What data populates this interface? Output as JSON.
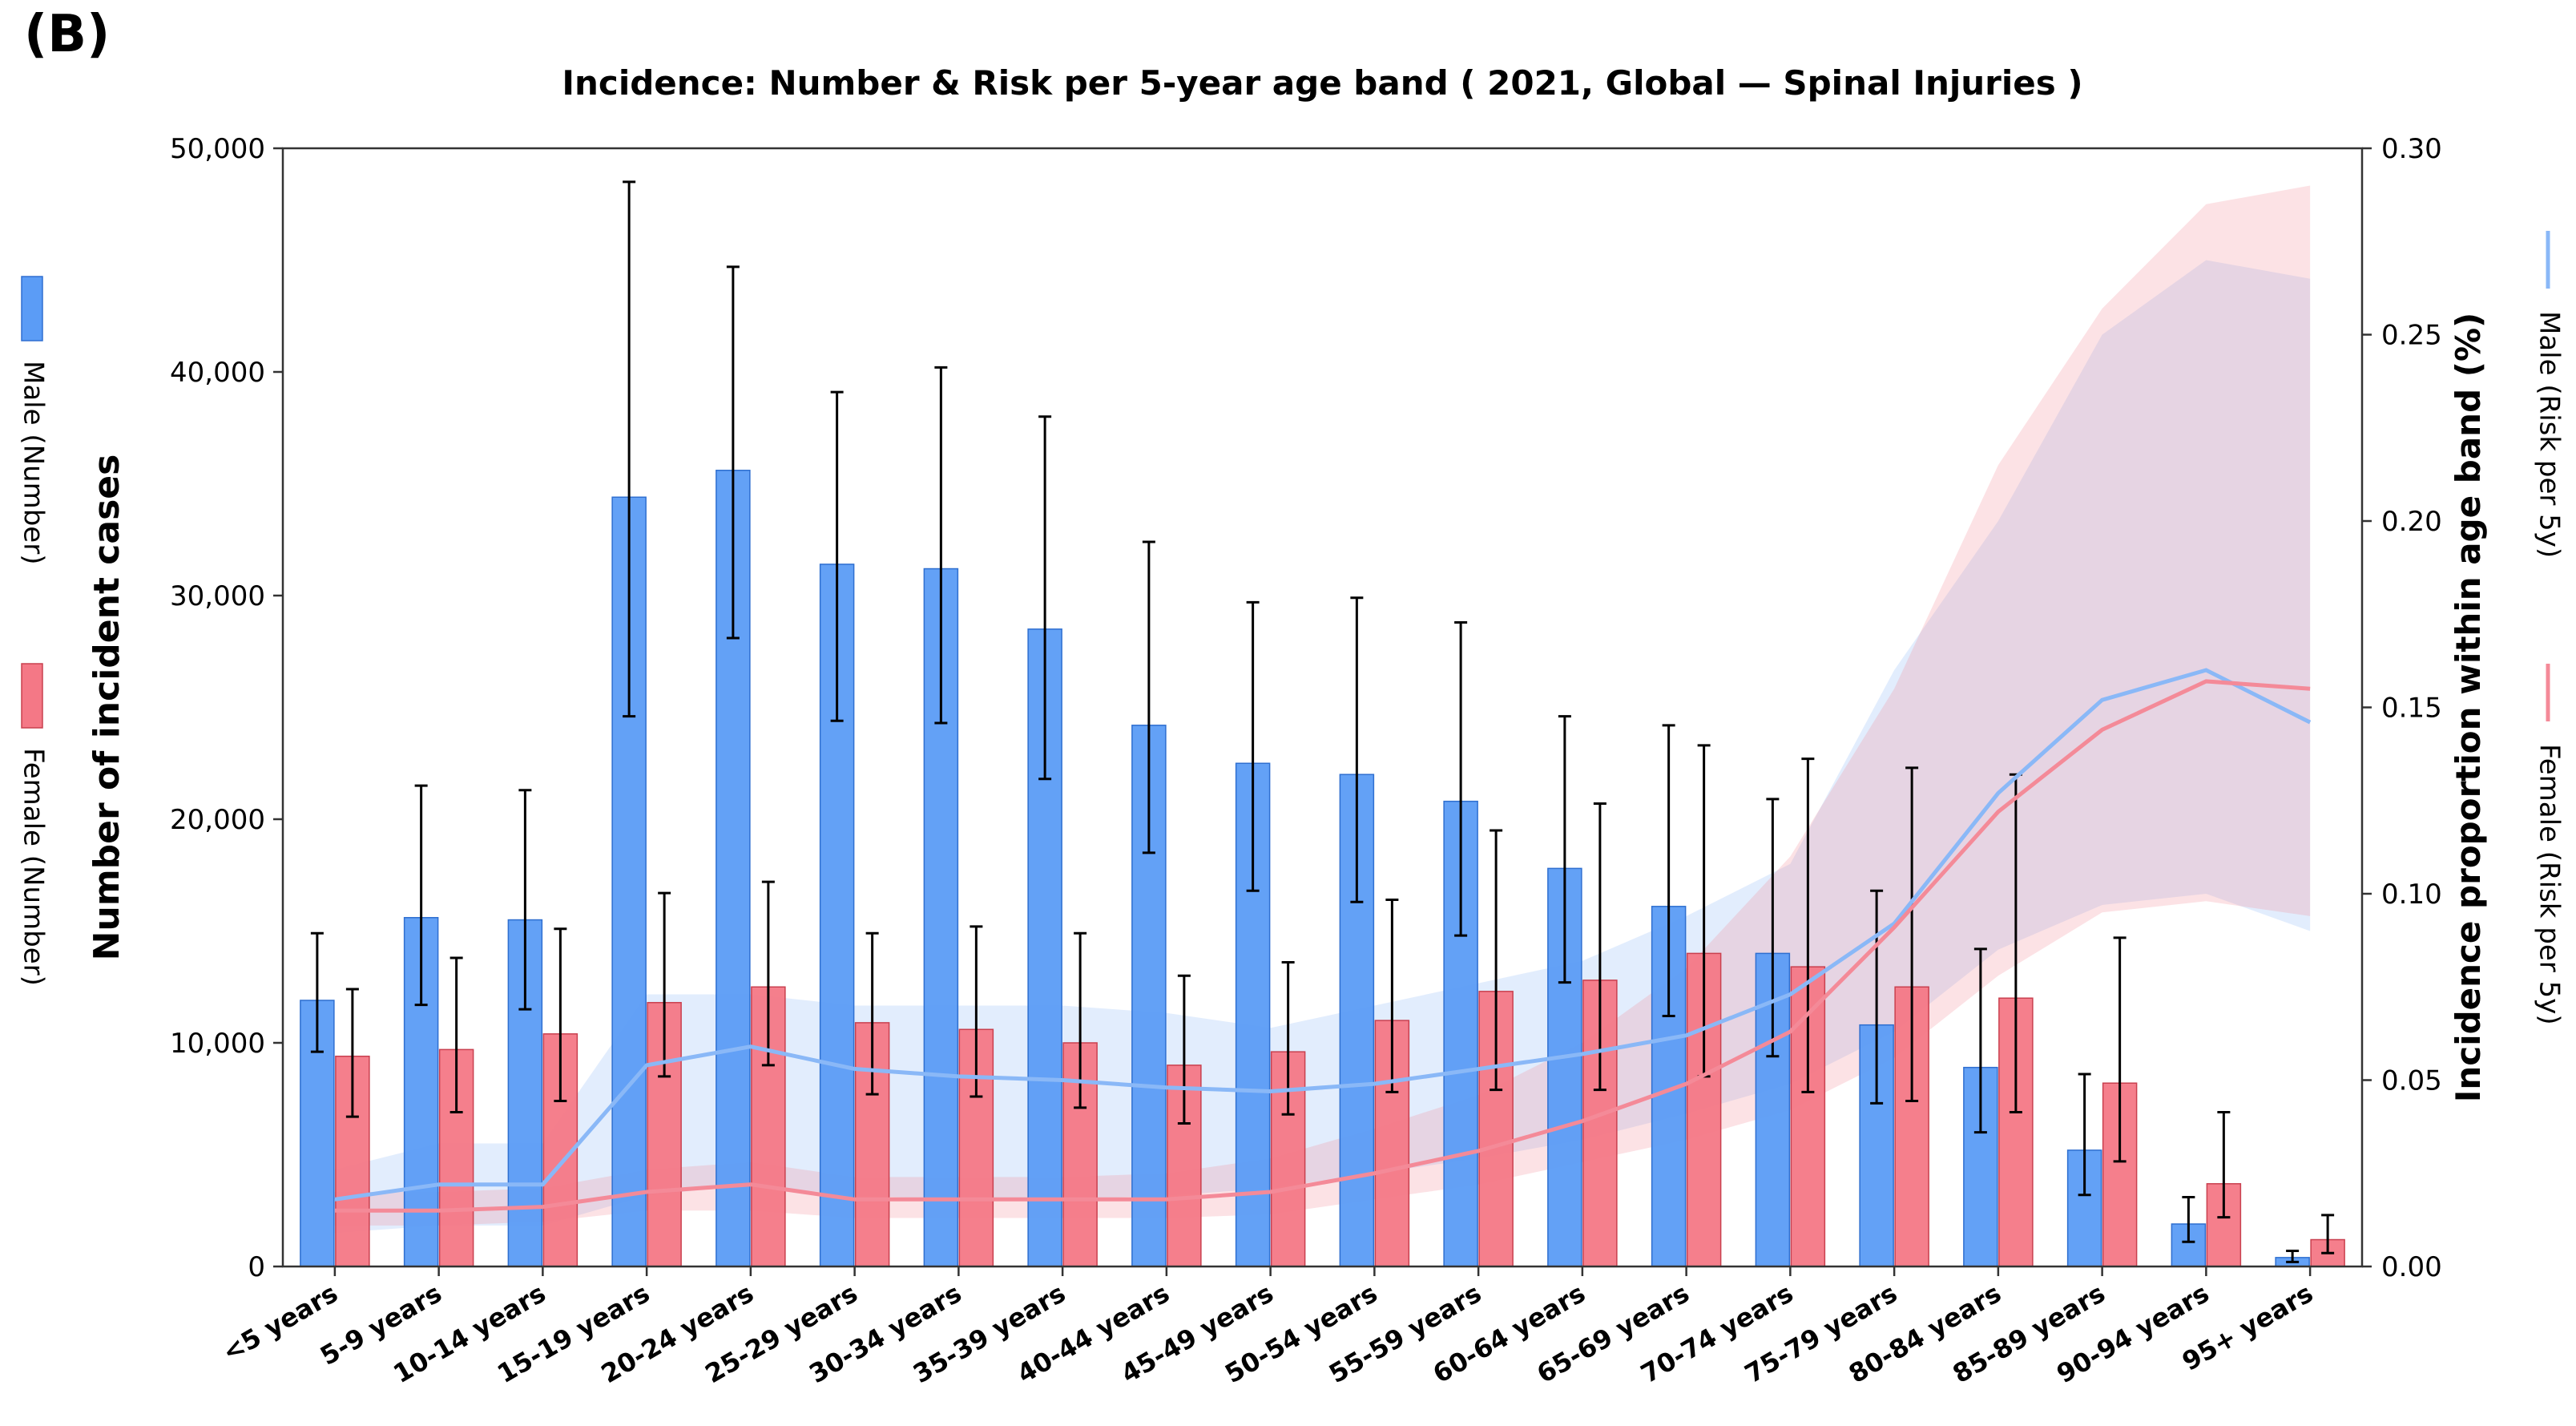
{
  "chart_data": {
    "panel_label": "(B)",
    "type": "bar+line",
    "title": "Incidence: Number & Risk per 5-year age band ( 2021, Global — Spinal Injuries )",
    "categories": [
      "<5 years",
      "5-9 years",
      "10-14 years",
      "15-19 years",
      "20-24 years",
      "25-29 years",
      "30-34 years",
      "35-39 years",
      "40-44 years",
      "45-49 years",
      "50-54 years",
      "55-59 years",
      "60-64 years",
      "65-69 years",
      "70-74 years",
      "75-79 years",
      "80-84 years",
      "85-89 years",
      "90-94 years",
      "95+ years"
    ],
    "ylabel": "Number of incident cases",
    "y2label": "Incidence proportion within age band (%)",
    "ylim": [
      0,
      50000
    ],
    "y2lim": [
      0,
      0.3
    ],
    "yticks": [
      0,
      10000,
      20000,
      30000,
      40000,
      50000
    ],
    "ytick_labels": [
      "0",
      "10,000",
      "20,000",
      "30,000",
      "40,000",
      "50,000"
    ],
    "y2ticks": [
      0,
      0.05,
      0.1,
      0.15,
      0.2,
      0.25,
      0.3
    ],
    "y2tick_labels": [
      "0.00",
      "0.05",
      "0.10",
      "0.15",
      "0.20",
      "0.25",
      "0.30"
    ],
    "bar_series": [
      {
        "name": "Male (Number)",
        "color": "#5b9cf6",
        "values": [
          11900,
          15600,
          15500,
          34400,
          35600,
          31400,
          31200,
          28500,
          24200,
          22500,
          22000,
          20800,
          17800,
          16100,
          14000,
          10800,
          8900,
          5200,
          1900,
          400
        ],
        "lower": [
          9600,
          11700,
          11500,
          24600,
          28100,
          24400,
          24300,
          21800,
          18500,
          16800,
          16300,
          14800,
          12700,
          11200,
          9400,
          7300,
          6000,
          3200,
          1100,
          200
        ],
        "upper": [
          14900,
          21500,
          21300,
          48500,
          44700,
          39100,
          40200,
          38000,
          32400,
          29700,
          29900,
          28800,
          24600,
          24200,
          20900,
          16800,
          14200,
          8600,
          3100,
          700
        ]
      },
      {
        "name": "Female (Number)",
        "color": "#f47886",
        "values": [
          9400,
          9700,
          10400,
          11800,
          12500,
          10900,
          10600,
          10000,
          9000,
          9600,
          11000,
          12300,
          12800,
          14000,
          13400,
          12500,
          12000,
          8200,
          3700,
          1200
        ],
        "lower": [
          6700,
          6900,
          7400,
          8500,
          9000,
          7700,
          7600,
          7100,
          6400,
          6800,
          7800,
          7900,
          7900,
          8500,
          7800,
          7400,
          6900,
          4700,
          2200,
          600
        ],
        "upper": [
          12400,
          13800,
          15100,
          16700,
          17200,
          14900,
          15200,
          14900,
          13000,
          13600,
          16400,
          19500,
          20700,
          23300,
          22700,
          22300,
          22000,
          14700,
          6900,
          2300
        ]
      }
    ],
    "line_series": [
      {
        "name": "Male (Risk per 5y)",
        "color": "#8ab8f7",
        "values": [
          0.018,
          0.022,
          0.022,
          0.054,
          0.059,
          0.053,
          0.051,
          0.05,
          0.048,
          0.047,
          0.049,
          0.053,
          0.057,
          0.062,
          0.073,
          0.092,
          0.127,
          0.152,
          0.16,
          0.146
        ],
        "lower": [
          0.009,
          0.011,
          0.011,
          0.019,
          0.022,
          0.019,
          0.018,
          0.018,
          0.019,
          0.021,
          0.025,
          0.029,
          0.034,
          0.041,
          0.049,
          0.063,
          0.085,
          0.097,
          0.1,
          0.09
        ],
        "upper": [
          0.026,
          0.033,
          0.033,
          0.073,
          0.073,
          0.07,
          0.07,
          0.07,
          0.068,
          0.064,
          0.07,
          0.076,
          0.082,
          0.094,
          0.108,
          0.16,
          0.2,
          0.25,
          0.27,
          0.265
        ]
      },
      {
        "name": "Female (Risk per 5y)",
        "color": "#f48a98",
        "values": [
          0.015,
          0.015,
          0.016,
          0.02,
          0.022,
          0.018,
          0.018,
          0.018,
          0.018,
          0.02,
          0.025,
          0.031,
          0.039,
          0.049,
          0.063,
          0.091,
          0.122,
          0.144,
          0.157,
          0.155
        ],
        "lower": [
          0.011,
          0.011,
          0.012,
          0.015,
          0.015,
          0.013,
          0.013,
          0.013,
          0.013,
          0.014,
          0.018,
          0.022,
          0.028,
          0.034,
          0.042,
          0.056,
          0.078,
          0.095,
          0.098,
          0.094
        ],
        "upper": [
          0.02,
          0.02,
          0.021,
          0.026,
          0.028,
          0.024,
          0.024,
          0.024,
          0.025,
          0.029,
          0.037,
          0.046,
          0.06,
          0.08,
          0.11,
          0.155,
          0.215,
          0.257,
          0.285,
          0.29
        ]
      }
    ],
    "legend": {
      "placement_left": "left of plot, rotated",
      "placement_right": "right of plot, rotated"
    }
  }
}
